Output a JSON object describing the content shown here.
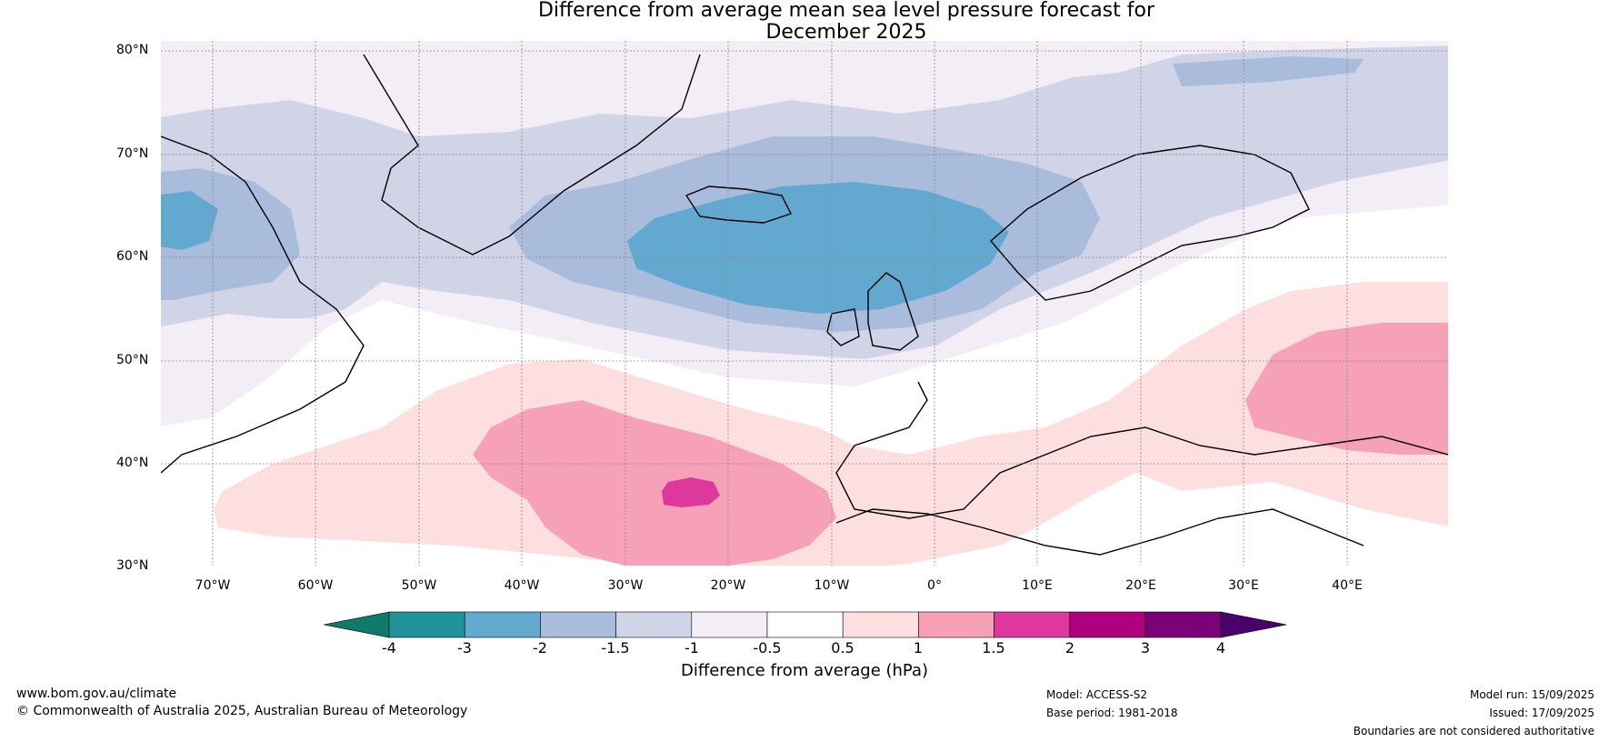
{
  "title": {
    "line1": "Difference from average mean sea level pressure forecast for",
    "line2": "December 2025"
  },
  "lat_labels": [
    "80°N",
    "70°N",
    "60°N",
    "50°N",
    "40°N",
    "30°N"
  ],
  "lon_labels": [
    "70°W",
    "60°W",
    "50°W",
    "40°W",
    "30°W",
    "20°W",
    "10°W",
    "0°",
    "10°E",
    "20°E",
    "30°E",
    "40°E"
  ],
  "colorbar": {
    "title": "Difference from average (hPa)",
    "ticks": [
      "-4",
      "-3",
      "-2",
      "-1.5",
      "-1",
      "-0.5",
      "0.5",
      "1",
      "1.5",
      "2",
      "3",
      "4"
    ],
    "colors": {
      "below_min": "#0d7a6a",
      "bins": [
        "#1f929a",
        "#63a8cf",
        "#a9bcdb",
        "#d1d3e6",
        "#f3eef6",
        "#ffffff",
        "#fddfe0",
        "#f7a1b9",
        "#df389c",
        "#ae007c",
        "#7a0179"
      ],
      "above_max": "#4a006a"
    }
  },
  "footer": {
    "website": "www.bom.gov.au/climate",
    "copyright": "© Commonwealth of Australia 2025, Australian Bureau of Meteorology",
    "model": "Model: ACCESS-S2",
    "base_period": "Base period: 1981-2018",
    "model_run": "Model run: 15/09/2025",
    "issued": "Issued: 17/09/2025",
    "disclaimer": "Boundaries are not considered authoritative"
  }
}
